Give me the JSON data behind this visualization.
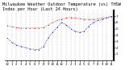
{
  "title": "Milwaukee Weather Outdoor Temperature (vs) THSW Index per Hour (Last 24 Hours)",
  "title_fontsize": 3.8,
  "background_color": "#ffffff",
  "plot_bg_color": "#ffffff",
  "grid_color": "#888888",
  "hours": [
    0,
    1,
    2,
    3,
    4,
    5,
    6,
    7,
    8,
    9,
    10,
    11,
    12,
    13,
    14,
    15,
    16,
    17,
    18,
    19,
    20,
    21,
    22,
    23
  ],
  "temp": [
    55,
    53,
    52,
    51,
    51,
    51,
    51,
    51,
    52,
    56,
    60,
    63,
    65,
    67,
    68,
    67,
    66,
    65,
    65,
    65,
    66,
    67,
    68,
    69
  ],
  "thsw": [
    35,
    28,
    24,
    22,
    20,
    18,
    17,
    17,
    22,
    35,
    44,
    52,
    60,
    56,
    50,
    46,
    44,
    46,
    54,
    60,
    63,
    65,
    67,
    70
  ],
  "temp_color": "#ff0000",
  "thsw_color": "#0000cc",
  "ylim": [
    0,
    80
  ],
  "ytick_values": [
    10,
    20,
    30,
    40,
    50,
    60,
    70
  ],
  "ytick_labels": [
    "1",
    "2",
    "3",
    "4",
    "5",
    "6",
    "7"
  ],
  "num_hours": 24,
  "xlabels": [
    "12",
    "1",
    "2",
    "3",
    "4",
    "5",
    "6",
    "7",
    "8",
    "9",
    "10",
    "11",
    "12",
    "1",
    "2",
    "3",
    "4",
    "5",
    "6",
    "7",
    "8",
    "9",
    "10",
    "11"
  ],
  "marker_size": 1.5,
  "line_width": 0.6,
  "dot_linestyle": "dotted"
}
